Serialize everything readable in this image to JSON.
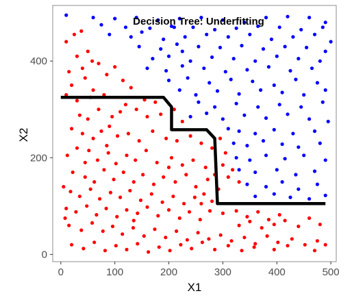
{
  "chart_data": {
    "type": "scatter",
    "title": "Decision Tree: Underfitting",
    "xlabel": "X1",
    "ylabel": "X2",
    "xlim": [
      -15,
      510
    ],
    "ylim": [
      -15,
      515
    ],
    "xticks": [
      0,
      100,
      200,
      300,
      400,
      500
    ],
    "yticks": [
      0,
      200,
      400
    ],
    "grid": false,
    "legend": "none",
    "boundary_color": "#000000",
    "series": [
      {
        "color": "#ff0000",
        "points": [
          [
            25,
            455
          ],
          [
            38,
            462
          ],
          [
            10,
            440
          ],
          [
            50,
            420
          ],
          [
            30,
            410
          ],
          [
            58,
            400
          ],
          [
            40,
            385
          ],
          [
            15,
            378
          ],
          [
            70,
            395
          ],
          [
            45,
            365
          ],
          [
            85,
            372
          ],
          [
            100,
            388
          ],
          [
            115,
            360
          ],
          [
            130,
            345
          ],
          [
            20,
            350
          ],
          [
            60,
            340
          ],
          [
            10,
            330
          ],
          [
            30,
            318
          ],
          [
            55,
            325
          ],
          [
            80,
            330
          ],
          [
            35,
            288
          ],
          [
            50,
            280
          ],
          [
            70,
            300
          ],
          [
            95,
            285
          ],
          [
            110,
            295
          ],
          [
            140,
            300
          ],
          [
            160,
            285
          ],
          [
            185,
            290
          ],
          [
            210,
            300
          ],
          [
            225,
            275
          ],
          [
            20,
            260
          ],
          [
            40,
            250
          ],
          [
            60,
            240
          ],
          [
            75,
            255
          ],
          [
            90,
            265
          ],
          [
            105,
            245
          ],
          [
            125,
            250
          ],
          [
            145,
            235
          ],
          [
            170,
            255
          ],
          [
            195,
            240
          ],
          [
            215,
            235
          ],
          [
            240,
            245
          ],
          [
            260,
            230
          ],
          [
            280,
            220
          ],
          [
            295,
            240
          ],
          [
            305,
            210
          ],
          [
            12,
            205
          ],
          [
            30,
            220
          ],
          [
            52,
            215
          ],
          [
            68,
            195
          ],
          [
            88,
            210
          ],
          [
            102,
            188
          ],
          [
            122,
            205
          ],
          [
            138,
            195
          ],
          [
            158,
            215
          ],
          [
            178,
            190
          ],
          [
            205,
            200
          ],
          [
            225,
            185
          ],
          [
            245,
            195
          ],
          [
            268,
            180
          ],
          [
            285,
            165
          ],
          [
            300,
            185
          ],
          [
            318,
            175
          ],
          [
            22,
            170
          ],
          [
            45,
            160
          ],
          [
            62,
            150
          ],
          [
            80,
            175
          ],
          [
            98,
            155
          ],
          [
            116,
            170
          ],
          [
            135,
            150
          ],
          [
            152,
            165
          ],
          [
            172,
            145
          ],
          [
            190,
            160
          ],
          [
            212,
            150
          ],
          [
            232,
            165
          ],
          [
            250,
            140
          ],
          [
            272,
            155
          ],
          [
            292,
            135
          ],
          [
            310,
            160
          ],
          [
            330,
            150
          ],
          [
            18,
            130
          ],
          [
            35,
            120
          ],
          [
            55,
            135
          ],
          [
            72,
            115
          ],
          [
            92,
            128
          ],
          [
            110,
            118
          ],
          [
            128,
            132
          ],
          [
            148,
            112
          ],
          [
            168,
            125
          ],
          [
            188,
            108
          ],
          [
            208,
            120
          ],
          [
            228,
            105
          ],
          [
            248,
            118
          ],
          [
            265,
            125
          ],
          [
            280,
            110
          ],
          [
            10,
            95
          ],
          [
            28,
            88
          ],
          [
            48,
            100
          ],
          [
            66,
            82
          ],
          [
            84,
            95
          ],
          [
            104,
            78
          ],
          [
            122,
            92
          ],
          [
            142,
            85
          ],
          [
            160,
            98
          ],
          [
            180,
            80
          ],
          [
            200,
            92
          ],
          [
            220,
            75
          ],
          [
            238,
            88
          ],
          [
            258,
            72
          ],
          [
            276,
            90
          ],
          [
            300,
            85
          ],
          [
            325,
            90
          ],
          [
            345,
            78
          ],
          [
            365,
            88
          ],
          [
            385,
            72
          ],
          [
            405,
            82
          ],
          [
            330,
            60
          ],
          [
            350,
            68
          ],
          [
            372,
            55
          ],
          [
            395,
            62
          ],
          [
            415,
            70
          ],
          [
            440,
            58
          ],
          [
            460,
            75
          ],
          [
            480,
            62
          ],
          [
            15,
            60
          ],
          [
            38,
            50
          ],
          [
            58,
            65
          ],
          [
            78,
            48
          ],
          [
            96,
            58
          ],
          [
            114,
            42
          ],
          [
            134,
            55
          ],
          [
            154,
            38
          ],
          [
            174,
            52
          ],
          [
            194,
            35
          ],
          [
            214,
            48
          ],
          [
            234,
            30
          ],
          [
            254,
            45
          ],
          [
            274,
            32
          ],
          [
            296,
            40
          ],
          [
            316,
            28
          ],
          [
            340,
            35
          ],
          [
            360,
            22
          ],
          [
            382,
            38
          ],
          [
            402,
            25
          ],
          [
            428,
            32
          ],
          [
            452,
            20
          ],
          [
            475,
            28
          ],
          [
            20,
            20
          ],
          [
            42,
            12
          ],
          [
            62,
            25
          ],
          [
            82,
            8
          ],
          [
            102,
            18
          ],
          [
            122,
            10
          ],
          [
            142,
            22
          ],
          [
            162,
            5
          ],
          [
            182,
            15
          ],
          [
            202,
            8
          ],
          [
            222,
            20
          ],
          [
            242,
            12
          ],
          [
            262,
            25
          ],
          [
            285,
            10
          ],
          [
            310,
            18
          ],
          [
            335,
            8
          ],
          [
            358,
            15
          ],
          [
            395,
            10
          ],
          [
            420,
            18
          ],
          [
            470,
            8
          ],
          [
            490,
            20
          ],
          [
            5,
            140
          ],
          [
            8,
            75
          ],
          [
            155,
            320
          ],
          [
            175,
            315
          ],
          [
            120,
            310
          ],
          [
            200,
            180
          ],
          [
            260,
            105
          ],
          [
            135,
            70
          ],
          [
            85,
            225
          ],
          [
            45,
            190
          ]
        ]
      },
      {
        "color": "#0000ff",
        "points": [
          [
            10,
            495
          ],
          [
            60,
            490
          ],
          [
            100,
            488
          ],
          [
            140,
            490
          ],
          [
            180,
            485
          ],
          [
            220,
            488
          ],
          [
            260,
            490
          ],
          [
            300,
            485
          ],
          [
            340,
            480
          ],
          [
            380,
            490
          ],
          [
            420,
            492
          ],
          [
            460,
            490
          ],
          [
            490,
            480
          ],
          [
            75,
            475
          ],
          [
            120,
            470
          ],
          [
            165,
            468
          ],
          [
            205,
            472
          ],
          [
            245,
            470
          ],
          [
            285,
            465
          ],
          [
            325,
            468
          ],
          [
            365,
            472
          ],
          [
            405,
            470
          ],
          [
            445,
            465
          ],
          [
            485,
            470
          ],
          [
            90,
            455
          ],
          [
            130,
            450
          ],
          [
            150,
            460
          ],
          [
            190,
            445
          ],
          [
            230,
            450
          ],
          [
            270,
            455
          ],
          [
            310,
            450
          ],
          [
            350,
            455
          ],
          [
            390,
            445
          ],
          [
            430,
            450
          ],
          [
            470,
            455
          ],
          [
            145,
            430
          ],
          [
            185,
            425
          ],
          [
            215,
            435
          ],
          [
            255,
            430
          ],
          [
            295,
            428
          ],
          [
            335,
            432
          ],
          [
            375,
            425
          ],
          [
            415,
            430
          ],
          [
            455,
            428
          ],
          [
            490,
            420
          ],
          [
            170,
            405
          ],
          [
            200,
            410
          ],
          [
            240,
            400
          ],
          [
            280,
            408
          ],
          [
            320,
            405
          ],
          [
            360,
            400
          ],
          [
            400,
            410
          ],
          [
            440,
            405
          ],
          [
            480,
            400
          ],
          [
            160,
            385
          ],
          [
            195,
            380
          ],
          [
            225,
            390
          ],
          [
            265,
            385
          ],
          [
            305,
            378
          ],
          [
            345,
            382
          ],
          [
            385,
            388
          ],
          [
            425,
            380
          ],
          [
            465,
            385
          ],
          [
            200,
            360
          ],
          [
            235,
            365
          ],
          [
            275,
            355
          ],
          [
            315,
            362
          ],
          [
            355,
            358
          ],
          [
            395,
            350
          ],
          [
            435,
            362
          ],
          [
            475,
            355
          ],
          [
            220,
            340
          ],
          [
            250,
            330
          ],
          [
            290,
            338
          ],
          [
            330,
            332
          ],
          [
            370,
            340
          ],
          [
            410,
            335
          ],
          [
            450,
            330
          ],
          [
            490,
            340
          ],
          [
            255,
            315
          ],
          [
            285,
            305
          ],
          [
            325,
            312
          ],
          [
            365,
            305
          ],
          [
            405,
            310
          ],
          [
            445,
            305
          ],
          [
            485,
            315
          ],
          [
            240,
            285
          ],
          [
            270,
            292
          ],
          [
            300,
            280
          ],
          [
            340,
            288
          ],
          [
            380,
            282
          ],
          [
            420,
            290
          ],
          [
            460,
            280
          ],
          [
            495,
            275
          ],
          [
            310,
            260
          ],
          [
            330,
            255
          ],
          [
            360,
            250
          ],
          [
            395,
            258
          ],
          [
            430,
            250
          ],
          [
            470,
            255
          ],
          [
            320,
            230
          ],
          [
            345,
            225
          ],
          [
            375,
            235
          ],
          [
            410,
            228
          ],
          [
            440,
            222
          ],
          [
            480,
            230
          ],
          [
            325,
            200
          ],
          [
            350,
            195
          ],
          [
            380,
            205
          ],
          [
            415,
            198
          ],
          [
            450,
            205
          ],
          [
            490,
            195
          ],
          [
            330,
            175
          ],
          [
            360,
            170
          ],
          [
            400,
            175
          ],
          [
            435,
            165
          ],
          [
            470,
            172
          ],
          [
            345,
            145
          ],
          [
            380,
            140
          ],
          [
            410,
            150
          ],
          [
            440,
            135
          ],
          [
            475,
            145
          ],
          [
            360,
            120
          ],
          [
            395,
            125
          ],
          [
            425,
            118
          ],
          [
            460,
            115
          ],
          [
            490,
            122
          ],
          [
            210,
            470
          ],
          [
            225,
            420
          ],
          [
            500,
            440
          ]
        ]
      }
    ],
    "boundary": [
      [
        0,
        325
      ],
      [
        190,
        325
      ],
      [
        205,
        305
      ],
      [
        205,
        258
      ],
      [
        270,
        258
      ],
      [
        285,
        240
      ],
      [
        290,
        105
      ],
      [
        490,
        105
      ]
    ]
  }
}
